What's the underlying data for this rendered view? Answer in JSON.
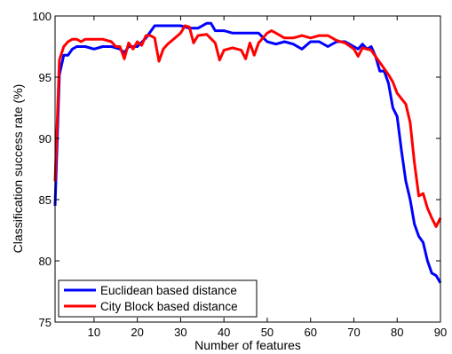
{
  "chart_data": {
    "type": "line",
    "xlabel": "Number of features",
    "ylabel": "Classification success rate (%)",
    "xlim": [
      1,
      90
    ],
    "ylim": [
      75,
      100
    ],
    "xticks": [
      10,
      20,
      30,
      40,
      50,
      60,
      70,
      80,
      90
    ],
    "yticks": [
      75,
      80,
      85,
      90,
      95,
      100
    ],
    "grid": false,
    "legend_position": "bottom-left",
    "series": [
      {
        "name": "Euclidean based distance",
        "color": "#0000ff",
        "x": [
          1,
          2,
          3,
          4,
          5,
          6,
          8,
          10,
          12,
          14,
          16,
          17,
          18,
          19,
          20,
          22,
          24,
          26,
          28,
          30,
          32,
          34,
          36,
          37,
          38,
          40,
          42,
          44,
          46,
          48,
          50,
          52,
          54,
          56,
          58,
          60,
          62,
          64,
          66,
          68,
          70,
          71,
          72,
          73,
          74,
          75,
          76,
          77,
          78,
          79,
          80,
          81,
          82,
          83,
          84,
          85,
          86,
          87,
          88,
          89,
          90
        ],
        "y": [
          84.5,
          95.2,
          96.8,
          96.8,
          97.3,
          97.5,
          97.5,
          97.3,
          97.5,
          97.5,
          97.3,
          97.0,
          97.5,
          97.5,
          97.5,
          98.2,
          99.2,
          99.2,
          99.2,
          99.2,
          99.0,
          99.0,
          99.4,
          99.4,
          98.8,
          98.8,
          98.6,
          98.6,
          98.6,
          98.6,
          97.9,
          97.7,
          97.9,
          97.7,
          97.3,
          97.9,
          97.9,
          97.5,
          97.9,
          97.9,
          97.5,
          97.3,
          97.7,
          97.3,
          97.5,
          96.7,
          95.5,
          95.5,
          94.5,
          92.5,
          91.8,
          89.0,
          86.5,
          85.0,
          83.0,
          82.0,
          81.5,
          80.0,
          79.0,
          78.8,
          78.2
        ]
      },
      {
        "name": "City Block based distance",
        "color": "#ff0000",
        "x": [
          1,
          2,
          3,
          4,
          5,
          6,
          7,
          8,
          10,
          12,
          14,
          15,
          16,
          17,
          18,
          19,
          20,
          21,
          22,
          23,
          24,
          25,
          26,
          27,
          28,
          30,
          31,
          32,
          33,
          34,
          36,
          38,
          39,
          40,
          42,
          44,
          45,
          46,
          47,
          48,
          50,
          51,
          52,
          54,
          56,
          58,
          60,
          62,
          64,
          66,
          68,
          70,
          71,
          72,
          74,
          76,
          77,
          78,
          79,
          80,
          82,
          83,
          84,
          85,
          86,
          87,
          88,
          89,
          90
        ],
        "y": [
          86.5,
          96.4,
          97.5,
          97.9,
          98.1,
          98.1,
          97.9,
          98.1,
          98.1,
          98.1,
          97.9,
          97.5,
          97.5,
          96.5,
          97.8,
          97.3,
          97.9,
          97.6,
          98.4,
          98.4,
          98.2,
          96.3,
          97.3,
          97.7,
          98.0,
          98.6,
          99.2,
          99.1,
          97.8,
          98.4,
          98.5,
          97.8,
          96.4,
          97.2,
          97.4,
          97.2,
          96.5,
          97.8,
          96.8,
          97.8,
          98.6,
          98.8,
          98.6,
          98.2,
          98.2,
          98.4,
          98.2,
          98.4,
          98.4,
          98.0,
          97.8,
          97.3,
          96.7,
          97.4,
          97.2,
          96.2,
          95.7,
          95.2,
          94.6,
          93.7,
          92.8,
          91.3,
          88.0,
          85.3,
          85.5,
          84.3,
          83.5,
          82.8,
          83.5
        ]
      }
    ]
  }
}
